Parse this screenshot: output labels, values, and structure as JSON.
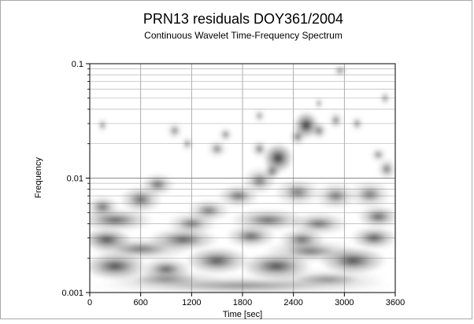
{
  "chart_data": {
    "type": "heatmap",
    "title": "PRN13 residuals DOY361/2004",
    "subtitle": "Continuous Wavelet Time-Frequency Spectrum",
    "xlabel": "Time [sec]",
    "ylabel": "Frequency",
    "xlim": [
      0,
      3600
    ],
    "ylim": [
      0.001,
      0.1
    ],
    "yscale": "log",
    "x_ticks": [
      0,
      600,
      1200,
      1800,
      2400,
      3000,
      3600
    ],
    "x_tick_labels": [
      "0",
      "600",
      "1200",
      "1800",
      "2400",
      "3000",
      "3600"
    ],
    "y_ticks": [
      0.001,
      0.01,
      0.1
    ],
    "y_tick_labels": [
      "0.001",
      "0.01",
      "0.1"
    ],
    "grid": true,
    "colormap": "grayscale, darker = higher power",
    "blobs": [
      {
        "t": 1800,
        "f": 0.00115,
        "rt": 1800,
        "rf": 0.1,
        "v": 0.35
      },
      {
        "t": 900,
        "f": 0.0013,
        "rt": 700,
        "rf": 0.1,
        "v": 0.35
      },
      {
        "t": 2800,
        "f": 0.0013,
        "rt": 700,
        "rf": 0.1,
        "v": 0.35
      },
      {
        "t": 300,
        "f": 0.0017,
        "rt": 380,
        "rf": 0.12,
        "v": 0.85
      },
      {
        "t": 900,
        "f": 0.0016,
        "rt": 300,
        "rf": 0.1,
        "v": 0.7
      },
      {
        "t": 1500,
        "f": 0.0019,
        "rt": 380,
        "rf": 0.12,
        "v": 0.8
      },
      {
        "t": 2200,
        "f": 0.0017,
        "rt": 420,
        "rf": 0.12,
        "v": 0.85
      },
      {
        "t": 3100,
        "f": 0.0019,
        "rt": 400,
        "rf": 0.12,
        "v": 0.85
      },
      {
        "t": 600,
        "f": 0.0024,
        "rt": 600,
        "rf": 0.1,
        "v": 0.55
      },
      {
        "t": 2600,
        "f": 0.0023,
        "rt": 550,
        "rf": 0.1,
        "v": 0.55
      },
      {
        "t": 200,
        "f": 0.0029,
        "rt": 300,
        "rf": 0.1,
        "v": 0.85
      },
      {
        "t": 1100,
        "f": 0.0029,
        "rt": 420,
        "rf": 0.1,
        "v": 0.75
      },
      {
        "t": 1900,
        "f": 0.0031,
        "rt": 300,
        "rf": 0.1,
        "v": 0.7
      },
      {
        "t": 2500,
        "f": 0.0029,
        "rt": 280,
        "rf": 0.1,
        "v": 0.65
      },
      {
        "t": 3350,
        "f": 0.003,
        "rt": 280,
        "rf": 0.1,
        "v": 0.75
      },
      {
        "t": 300,
        "f": 0.0043,
        "rt": 450,
        "rf": 0.1,
        "v": 0.7
      },
      {
        "t": 1200,
        "f": 0.004,
        "rt": 300,
        "rf": 0.1,
        "v": 0.55
      },
      {
        "t": 2100,
        "f": 0.0043,
        "rt": 450,
        "rf": 0.1,
        "v": 0.65
      },
      {
        "t": 2700,
        "f": 0.004,
        "rt": 350,
        "rf": 0.1,
        "v": 0.6
      },
      {
        "t": 3400,
        "f": 0.0046,
        "rt": 250,
        "rf": 0.1,
        "v": 0.7
      },
      {
        "t": 150,
        "f": 0.0056,
        "rt": 200,
        "rf": 0.1,
        "v": 0.6
      },
      {
        "t": 600,
        "f": 0.0065,
        "rt": 250,
        "rf": 0.12,
        "v": 0.65
      },
      {
        "t": 800,
        "f": 0.0088,
        "rt": 200,
        "rf": 0.1,
        "v": 0.6
      },
      {
        "t": 1400,
        "f": 0.0052,
        "rt": 260,
        "rf": 0.1,
        "v": 0.55
      },
      {
        "t": 1750,
        "f": 0.007,
        "rt": 250,
        "rf": 0.1,
        "v": 0.6
      },
      {
        "t": 2000,
        "f": 0.0095,
        "rt": 200,
        "rf": 0.12,
        "v": 0.55
      },
      {
        "t": 2450,
        "f": 0.0075,
        "rt": 280,
        "rf": 0.12,
        "v": 0.55
      },
      {
        "t": 2900,
        "f": 0.007,
        "rt": 250,
        "rf": 0.12,
        "v": 0.55
      },
      {
        "t": 3300,
        "f": 0.0072,
        "rt": 250,
        "rf": 0.12,
        "v": 0.55
      },
      {
        "t": 3500,
        "f": 0.012,
        "rt": 120,
        "rf": 0.1,
        "v": 0.5
      },
      {
        "t": 2220,
        "f": 0.015,
        "rt": 180,
        "rf": 0.13,
        "v": 1.0
      },
      {
        "t": 2000,
        "f": 0.018,
        "rt": 100,
        "rf": 0.08,
        "v": 0.5
      },
      {
        "t": 2150,
        "f": 0.0115,
        "rt": 110,
        "rf": 0.08,
        "v": 0.6
      },
      {
        "t": 2550,
        "f": 0.029,
        "rt": 150,
        "rf": 0.12,
        "v": 1.0
      },
      {
        "t": 2450,
        "f": 0.023,
        "rt": 100,
        "rf": 0.08,
        "v": 0.55
      },
      {
        "t": 2700,
        "f": 0.026,
        "rt": 100,
        "rf": 0.08,
        "v": 0.55
      },
      {
        "t": 1500,
        "f": 0.018,
        "rt": 120,
        "rf": 0.08,
        "v": 0.45
      },
      {
        "t": 1600,
        "f": 0.024,
        "rt": 90,
        "rf": 0.07,
        "v": 0.4
      },
      {
        "t": 1000,
        "f": 0.026,
        "rt": 100,
        "rf": 0.08,
        "v": 0.4
      },
      {
        "t": 1150,
        "f": 0.02,
        "rt": 80,
        "rf": 0.07,
        "v": 0.35
      },
      {
        "t": 150,
        "f": 0.029,
        "rt": 70,
        "rf": 0.07,
        "v": 0.35
      },
      {
        "t": 2000,
        "f": 0.035,
        "rt": 80,
        "rf": 0.07,
        "v": 0.3
      },
      {
        "t": 2900,
        "f": 0.032,
        "rt": 90,
        "rf": 0.08,
        "v": 0.45
      },
      {
        "t": 3150,
        "f": 0.03,
        "rt": 80,
        "rf": 0.07,
        "v": 0.4
      },
      {
        "t": 3400,
        "f": 0.016,
        "rt": 100,
        "rf": 0.07,
        "v": 0.4
      },
      {
        "t": 3480,
        "f": 0.05,
        "rt": 70,
        "rf": 0.07,
        "v": 0.35
      },
      {
        "t": 2950,
        "f": 0.087,
        "rt": 90,
        "rf": 0.06,
        "v": 0.4
      },
      {
        "t": 2700,
        "f": 0.045,
        "rt": 60,
        "rf": 0.06,
        "v": 0.3
      }
    ]
  }
}
